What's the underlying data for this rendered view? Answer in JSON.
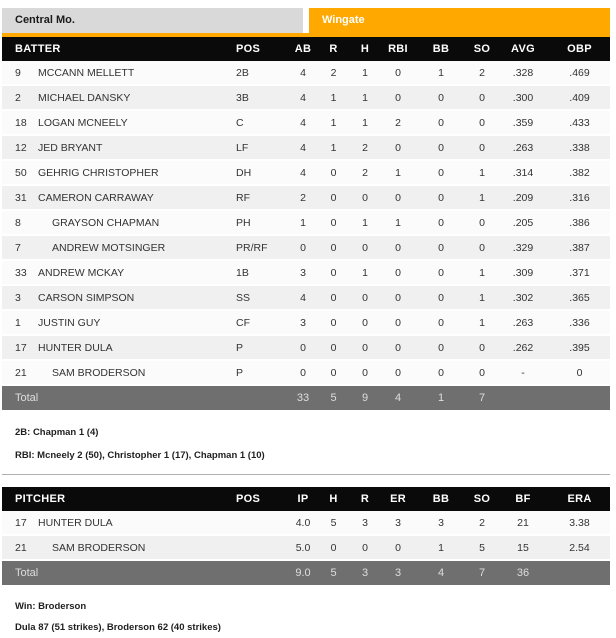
{
  "scoreboard": {
    "away_team": "Central Mo.",
    "home_team": "Wingate"
  },
  "colors": {
    "accent_orange": "#FFA800",
    "away_tab_bg": "#D9D9D9",
    "table_header_bg": "#0a0a0a",
    "row_bg": "#FBFBFB",
    "row_alt_bg": "#F0F0F1",
    "total_row_bg": "#6F6F6F"
  },
  "batting": {
    "columns": [
      "BATTER",
      "POS",
      "AB",
      "R",
      "H",
      "RBI",
      "BB",
      "SO",
      "AVG",
      "OBP"
    ],
    "rows": [
      {
        "num": "9",
        "name": "MCCANN MELLETT",
        "sub": false,
        "pos": "2B",
        "stats": [
          "4",
          "2",
          "1",
          "0",
          "1",
          "2",
          ".328",
          ".469"
        ]
      },
      {
        "num": "2",
        "name": "MICHAEL DANSKY",
        "sub": false,
        "pos": "3B",
        "stats": [
          "4",
          "1",
          "1",
          "0",
          "0",
          "0",
          ".300",
          ".409"
        ]
      },
      {
        "num": "18",
        "name": "LOGAN MCNEELY",
        "sub": false,
        "pos": "C",
        "stats": [
          "4",
          "1",
          "1",
          "2",
          "0",
          "0",
          ".359",
          ".433"
        ]
      },
      {
        "num": "12",
        "name": "JED BRYANT",
        "sub": false,
        "pos": "LF",
        "stats": [
          "4",
          "1",
          "2",
          "0",
          "0",
          "0",
          ".263",
          ".338"
        ]
      },
      {
        "num": "50",
        "name": "GEHRIG CHRISTOPHER",
        "sub": false,
        "pos": "DH",
        "stats": [
          "4",
          "0",
          "2",
          "1",
          "0",
          "1",
          ".314",
          ".382"
        ]
      },
      {
        "num": "31",
        "name": "CAMERON CARRAWAY",
        "sub": false,
        "pos": "RF",
        "stats": [
          "2",
          "0",
          "0",
          "0",
          "0",
          "1",
          ".209",
          ".316"
        ]
      },
      {
        "num": "8",
        "name": "GRAYSON CHAPMAN",
        "sub": true,
        "pos": "PH",
        "stats": [
          "1",
          "0",
          "1",
          "1",
          "0",
          "0",
          ".205",
          ".386"
        ]
      },
      {
        "num": "7",
        "name": "ANDREW MOTSINGER",
        "sub": true,
        "pos": "PR/RF",
        "stats": [
          "0",
          "0",
          "0",
          "0",
          "0",
          "0",
          ".329",
          ".387"
        ]
      },
      {
        "num": "33",
        "name": "ANDREW MCKAY",
        "sub": false,
        "pos": "1B",
        "stats": [
          "3",
          "0",
          "1",
          "0",
          "0",
          "1",
          ".309",
          ".371"
        ]
      },
      {
        "num": "3",
        "name": "CARSON SIMPSON",
        "sub": false,
        "pos": "SS",
        "stats": [
          "4",
          "0",
          "0",
          "0",
          "0",
          "1",
          ".302",
          ".365"
        ]
      },
      {
        "num": "1",
        "name": "JUSTIN GUY",
        "sub": false,
        "pos": "CF",
        "stats": [
          "3",
          "0",
          "0",
          "0",
          "0",
          "1",
          ".263",
          ".336"
        ]
      },
      {
        "num": "17",
        "name": "HUNTER DULA",
        "sub": false,
        "pos": "P",
        "stats": [
          "0",
          "0",
          "0",
          "0",
          "0",
          "0",
          ".262",
          ".395"
        ]
      },
      {
        "num": "21",
        "name": "SAM BRODERSON",
        "sub": true,
        "pos": "P",
        "stats": [
          "0",
          "0",
          "0",
          "0",
          "0",
          "0",
          "-",
          "0"
        ]
      }
    ],
    "total": {
      "label": "Total",
      "stats": [
        "33",
        "5",
        "9",
        "4",
        "1",
        "7",
        "",
        ""
      ]
    },
    "notes": [
      "2B: Chapman 1 (4)",
      "RBI: Mcneely 2 (50), Christopher 1 (17), Chapman 1 (10)"
    ]
  },
  "pitching": {
    "columns": [
      "PITCHER",
      "POS",
      "IP",
      "H",
      "R",
      "ER",
      "BB",
      "SO",
      "BF",
      "ERA"
    ],
    "rows": [
      {
        "num": "17",
        "name": "HUNTER DULA",
        "sub": false,
        "pos": "",
        "stats": [
          "4.0",
          "5",
          "3",
          "3",
          "3",
          "2",
          "21",
          "3.38"
        ]
      },
      {
        "num": "21",
        "name": "SAM BRODERSON",
        "sub": true,
        "pos": "",
        "stats": [
          "5.0",
          "0",
          "0",
          "0",
          "1",
          "5",
          "15",
          "2.54"
        ]
      }
    ],
    "total": {
      "label": "Total",
      "stats": [
        "9.0",
        "5",
        "3",
        "3",
        "4",
        "7",
        "36",
        ""
      ]
    },
    "notes": [
      "Win: Broderson",
      "Dula 87 (51 strikes), Broderson 62 (40 strikes)"
    ]
  }
}
